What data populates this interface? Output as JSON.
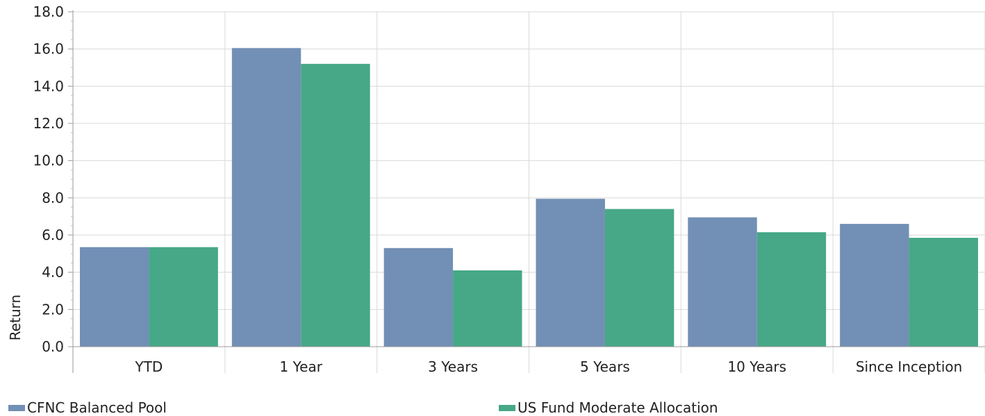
{
  "chart_data": {
    "type": "bar",
    "title": "",
    "xlabel": "",
    "ylabel": "Return",
    "ylim": [
      0,
      18
    ],
    "yticks": [
      "0.0",
      "2.0",
      "4.0",
      "6.0",
      "8.0",
      "10.0",
      "12.0",
      "14.0",
      "16.0",
      "18.0"
    ],
    "categories": [
      "YTD",
      "1 Year",
      "3 Years",
      "5 Years",
      "10 Years",
      "Since Inception"
    ],
    "series": [
      {
        "name": "CFNC Balanced Pool",
        "color": "#728fb5",
        "values": [
          5.35,
          16.05,
          5.3,
          7.95,
          6.95,
          6.6
        ]
      },
      {
        "name": "US Fund Moderate Allocation",
        "color": "#46a887",
        "values": [
          5.35,
          15.2,
          4.1,
          7.4,
          6.15,
          5.85
        ]
      }
    ],
    "grid": true,
    "legend_position": "bottom"
  }
}
